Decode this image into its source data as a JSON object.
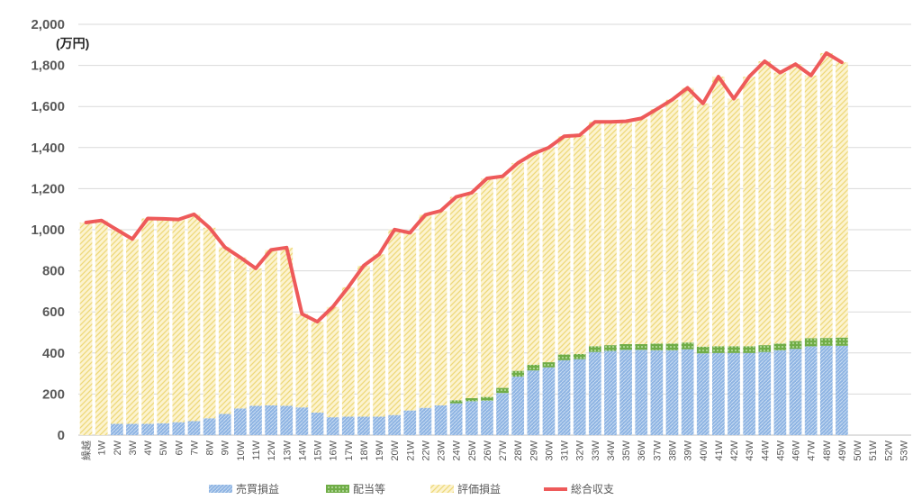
{
  "chart_data": {
    "type": "bar",
    "stacked": true,
    "title": "",
    "unit_label": "(万円)",
    "xlabel": "",
    "ylabel": "",
    "ylim": [
      0,
      2000
    ],
    "yticks": [
      0,
      200,
      400,
      600,
      800,
      1000,
      1200,
      1400,
      1600,
      1800,
      2000
    ],
    "ytick_labels": [
      "0",
      "200",
      "400",
      "600",
      "800",
      "1,000",
      "1,200",
      "1,400",
      "1,600",
      "1,800",
      "2,000"
    ],
    "grid": true,
    "legend_position": "bottom",
    "categories": [
      "繰越",
      "1W",
      "2W",
      "3W",
      "4W",
      "5W",
      "6W",
      "7W",
      "8W",
      "9W",
      "10W",
      "11W",
      "12W",
      "13W",
      "14W",
      "15W",
      "16W",
      "17W",
      "18W",
      "19W",
      "20W",
      "21W",
      "22W",
      "23W",
      "24W",
      "25W",
      "26W",
      "27W",
      "28W",
      "29W",
      "30W",
      "31W",
      "32W",
      "33W",
      "34W",
      "35W",
      "36W",
      "37W",
      "38W",
      "39W",
      "40W",
      "41W",
      "42W",
      "43W",
      "44W",
      "45W",
      "46W",
      "47W",
      "48W",
      "49W",
      "50W",
      "51W",
      "52W",
      "53W"
    ],
    "series": [
      {
        "name": "売買損益",
        "kind": "bar",
        "color": "#8eb4e3",
        "values": [
          0,
          0,
          55,
          55,
          55,
          58,
          63,
          68,
          82,
          103,
          130,
          143,
          145,
          143,
          135,
          110,
          87,
          90,
          90,
          90,
          98,
          120,
          133,
          145,
          155,
          165,
          168,
          205,
          285,
          315,
          330,
          365,
          370,
          405,
          410,
          415,
          415,
          413,
          413,
          418,
          398,
          400,
          400,
          400,
          405,
          413,
          420,
          432,
          435,
          435,
          null,
          null,
          null,
          null
        ]
      },
      {
        "name": "配当等",
        "kind": "bar",
        "color": "#70ad47",
        "values": [
          0,
          0,
          0,
          0,
          0,
          0,
          0,
          0,
          0,
          0,
          0,
          0,
          0,
          0,
          0,
          0,
          0,
          0,
          0,
          0,
          0,
          0,
          0,
          0,
          15,
          15,
          18,
          25,
          28,
          28,
          25,
          28,
          25,
          28,
          28,
          28,
          28,
          33,
          33,
          33,
          33,
          33,
          33,
          33,
          33,
          33,
          38,
          40,
          38,
          40,
          null,
          null,
          null,
          null
        ]
      },
      {
        "name": "評価損益",
        "kind": "bar",
        "color": "#f4e08c",
        "values": [
          1035,
          1045,
          945,
          900,
          1000,
          995,
          987,
          1007,
          928,
          812,
          735,
          669,
          757,
          770,
          455,
          442,
          537,
          630,
          735,
          790,
          903,
          865,
          940,
          947,
          990,
          1000,
          1064,
          1030,
          1012,
          1027,
          1045,
          1062,
          1065,
          1092,
          1087,
          1085,
          1099,
          1141,
          1187,
          1240,
          1184,
          1312,
          1205,
          1312,
          1382,
          1319,
          1348,
          1279,
          1387,
          1340,
          null,
          null,
          null,
          null
        ]
      },
      {
        "name": "総合収支",
        "kind": "line",
        "color": "#ee5a5a",
        "values": [
          1035,
          1045,
          1000,
          955,
          1055,
          1053,
          1050,
          1075,
          1010,
          915,
          865,
          812,
          902,
          913,
          590,
          552,
          624,
          720,
          825,
          880,
          1001,
          985,
          1073,
          1092,
          1160,
          1180,
          1250,
          1260,
          1325,
          1370,
          1400,
          1455,
          1460,
          1525,
          1525,
          1528,
          1542,
          1587,
          1633,
          1691,
          1615,
          1745,
          1638,
          1745,
          1820,
          1765,
          1806,
          1751,
          1860,
          1815,
          null,
          null,
          null,
          null
        ]
      }
    ]
  }
}
